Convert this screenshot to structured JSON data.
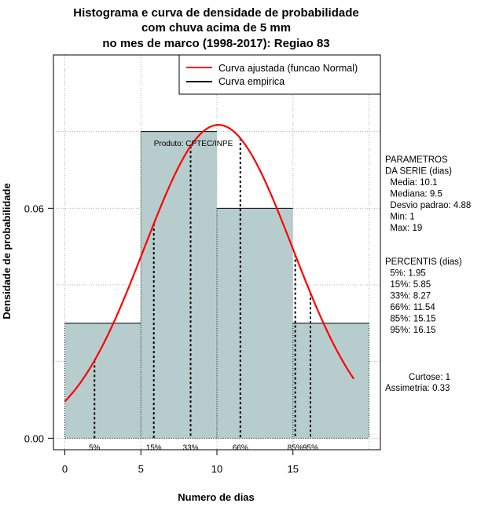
{
  "chart_data": {
    "type": "histogram",
    "title_lines": [
      "Histograma e curva de densidade de probabilidade",
      "com chuva acima de 5 mm",
      "no mes de marco (1998-2017): Regiao 83"
    ],
    "xlabel": "Numero de dias",
    "ylabel": "Densidade de probabilidade",
    "xlim": [
      -0.75,
      20.75
    ],
    "ylim": [
      -0.003,
      0.1
    ],
    "x_ticks": [
      0,
      5,
      10,
      15
    ],
    "y_ticks": [
      0.0,
      0.06
    ],
    "y_tick_labels": [
      "0.00",
      "0.06"
    ],
    "grid_x": [
      0,
      5,
      10,
      15,
      20
    ],
    "grid_y": [
      0.0,
      0.02,
      0.04,
      0.06,
      0.08,
      0.1
    ],
    "bins": [
      {
        "start": 0,
        "end": 5,
        "density": 0.03
      },
      {
        "start": 5,
        "end": 10,
        "density": 0.08
      },
      {
        "start": 10,
        "end": 15,
        "density": 0.06
      },
      {
        "start": 15,
        "end": 20,
        "density": 0.03
      }
    ],
    "bar_color": "#b7cdcd",
    "normal_curve": {
      "mean": 10.1,
      "sd": 4.88,
      "x_from": 0,
      "x_to": 19,
      "color": "#ff0000"
    },
    "percentile_lines": [
      {
        "label": "5%",
        "x": 1.95
      },
      {
        "label": "15%",
        "x": 5.85
      },
      {
        "label": "33%",
        "x": 8.27
      },
      {
        "label": "66%",
        "x": 11.54
      },
      {
        "label": "85%",
        "x": 15.15
      },
      {
        "label": "95%",
        "x": 16.15
      }
    ],
    "legend": [
      {
        "label": "Curva ajustada (funcao Normal)",
        "color": "#ff0000"
      },
      {
        "label": "Curva empirica",
        "color": "#000000"
      }
    ],
    "legend_position": "top-right",
    "annotation": "Produto: CPTEC/INPE"
  },
  "side_panel": {
    "parametros_lines": [
      "PARAMETROS",
      "DA SERIE (dias)",
      "  Media: 10.1",
      "  Mediana: 9.5",
      "  Desvio padrao: 4.88",
      "  Min: 1",
      "  Max: 19"
    ],
    "percentis_lines": [
      "PERCENTIS (dias)",
      "  5%: 1.95",
      "  15%: 5.85",
      "  33%: 8.27",
      "  66%: 11.54",
      "  85%: 15.15",
      "  95%: 16.15"
    ],
    "curtose": "Curtose: 1",
    "assimetria": "Assimetria: 0.33"
  }
}
